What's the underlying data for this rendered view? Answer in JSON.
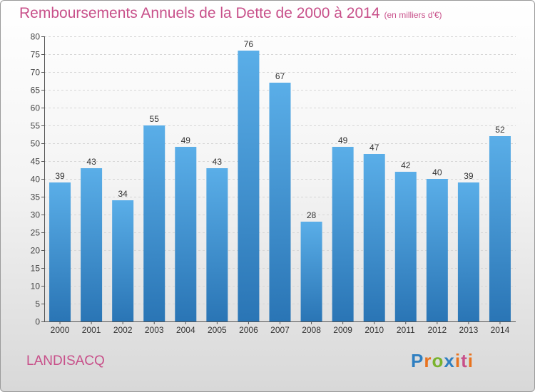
{
  "title": "Remboursements Annuels de la Dette de 2000 à 2014",
  "unit": "(en milliers d'€)",
  "commune": "LANDISACQ",
  "logo": {
    "text": "Proxiti",
    "letters": [
      "P",
      "r",
      "o",
      "x",
      "i",
      "t",
      "i"
    ]
  },
  "colors": {
    "bar_top": "#5aaee8",
    "bar_bottom": "#2a75b5",
    "title": "#c8508a",
    "axis": "#555555"
  },
  "chart_data": {
    "type": "bar",
    "title": "Remboursements Annuels de la Dette de 2000 à 2014",
    "subtitle": "(en milliers d'€)",
    "categories": [
      "2000",
      "2001",
      "2002",
      "2003",
      "2004",
      "2005",
      "2006",
      "2007",
      "2008",
      "2009",
      "2010",
      "2011",
      "2012",
      "2013",
      "2014"
    ],
    "values": [
      39,
      43,
      34,
      55,
      49,
      43,
      76,
      67,
      28,
      49,
      47,
      42,
      40,
      39,
      52
    ],
    "ylim": [
      0,
      80
    ],
    "yticks": [
      0,
      5,
      10,
      15,
      20,
      25,
      30,
      35,
      40,
      45,
      50,
      55,
      60,
      65,
      70,
      75,
      80
    ],
    "grid": true,
    "data_labels": true
  }
}
